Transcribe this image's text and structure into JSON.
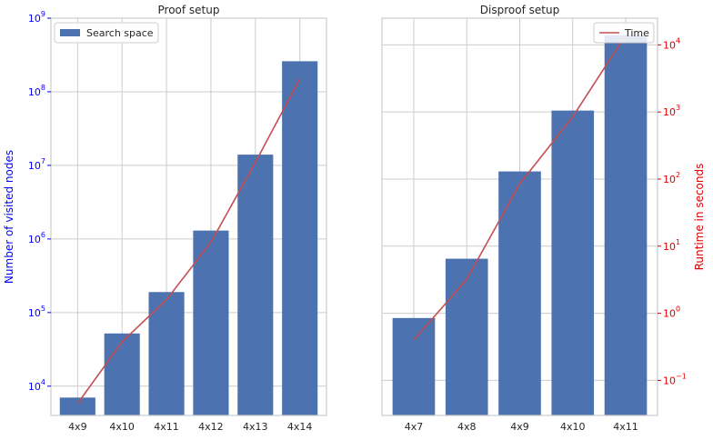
{
  "colors": {
    "bar": "#4c72b0",
    "line": "#c44e52",
    "left_axis": "#0000ff",
    "right_axis": "#e00000",
    "grid": "#cccccc",
    "frame": "#cccccc",
    "text": "#262626"
  },
  "chart_data": [
    {
      "type": "bar",
      "title": "Proof setup",
      "categories": [
        "4x9",
        "4x10",
        "4x11",
        "4x12",
        "4x13",
        "4x14"
      ],
      "ylabel": "Number of visited nodes",
      "yscale": "log",
      "ylim": [
        4000,
        1000000000
      ],
      "y_ticks": [
        {
          "value": 10000,
          "base": "10",
          "exp": "4"
        },
        {
          "value": 100000,
          "base": "10",
          "exp": "5"
        },
        {
          "value": 1000000,
          "base": "10",
          "exp": "6"
        },
        {
          "value": 10000000,
          "base": "10",
          "exp": "7"
        },
        {
          "value": 100000000,
          "base": "10",
          "exp": "8"
        },
        {
          "value": 1000000000,
          "base": "10",
          "exp": "9"
        }
      ],
      "series": [
        {
          "name": "Search space",
          "kind": "bar",
          "values": [
            7000,
            52000,
            190000,
            1300000,
            14000000,
            260000000
          ]
        },
        {
          "name": "",
          "kind": "line",
          "values": [
            5800,
            40000,
            150000,
            900000,
            11000000,
            150000000
          ]
        }
      ],
      "legend": {
        "entry": "Search space",
        "placement": "top-left"
      },
      "grid": true
    },
    {
      "type": "bar",
      "title": "Disproof setup",
      "categories": [
        "4x7",
        "4x8",
        "4x9",
        "4x10",
        "4x11"
      ],
      "y2label": "Runtime in seconds",
      "y2scale": "log",
      "y2lim": [
        0.03,
        25000
      ],
      "y2_ticks": [
        {
          "value": 0.1,
          "base": "10",
          "exp": "−1"
        },
        {
          "value": 1,
          "base": "10",
          "exp": "0"
        },
        {
          "value": 10,
          "base": "10",
          "exp": "1"
        },
        {
          "value": 100,
          "base": "10",
          "exp": "2"
        },
        {
          "value": 1000,
          "base": "10",
          "exp": "3"
        },
        {
          "value": 10000,
          "base": "10",
          "exp": "4"
        }
      ],
      "series": [
        {
          "name": "",
          "kind": "bar",
          "values": [
            0.85,
            6.5,
            130,
            1050,
            14000
          ]
        },
        {
          "name": "Time",
          "kind": "line",
          "values": [
            0.4,
            3.2,
            85,
            850,
            14000
          ]
        }
      ],
      "legend": {
        "entry": "Time",
        "placement": "top-right"
      },
      "grid": true
    }
  ]
}
